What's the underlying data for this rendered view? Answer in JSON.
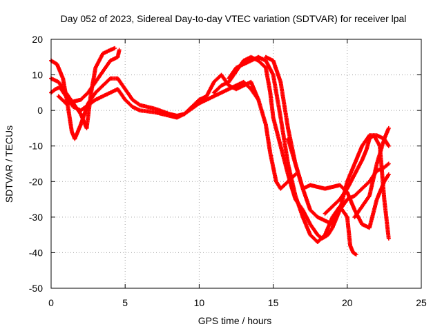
{
  "chart_data": {
    "type": "scatter",
    "title": "Day 052 of 2023, Sidereal Day-to-day VTEC variation (SDTVAR) for receiver lpal",
    "xlabel": "GPS time / hours",
    "ylabel": "SDTVAR / TECUs",
    "xlim": [
      0,
      25
    ],
    "ylim": [
      -50,
      20
    ],
    "xticks": [
      0,
      5,
      10,
      15,
      20,
      25
    ],
    "yticks": [
      -50,
      -40,
      -30,
      -20,
      -10,
      0,
      10,
      20
    ],
    "grid": true,
    "marker": "+",
    "color": "#ff0000",
    "series": [
      {
        "name": "trace-1",
        "points": [
          [
            0,
            14
          ],
          [
            0.4,
            13
          ],
          [
            0.8,
            9
          ],
          [
            1.1,
            2
          ],
          [
            1.4,
            -6
          ],
          [
            1.6,
            -8
          ],
          [
            2,
            -4
          ],
          [
            2.5,
            2
          ],
          [
            3,
            5
          ],
          [
            3.5,
            7
          ],
          [
            4,
            9
          ],
          [
            4.5,
            9
          ],
          [
            5,
            6
          ],
          [
            5.5,
            3
          ],
          [
            6,
            1.5
          ],
          [
            7,
            0.5
          ],
          [
            8,
            -1
          ],
          [
            8.5,
            -1.5
          ],
          [
            9,
            -1
          ],
          [
            9.5,
            0.5
          ],
          [
            10,
            2
          ],
          [
            11,
            4
          ],
          [
            12,
            6
          ],
          [
            13,
            8
          ],
          [
            13.5,
            6
          ],
          [
            14,
            3
          ],
          [
            14.5,
            -4
          ],
          [
            14.8,
            -12
          ],
          [
            15.2,
            -20
          ],
          [
            15.5,
            -22
          ],
          [
            16,
            -20
          ],
          [
            16.5,
            -18
          ]
        ]
      },
      {
        "name": "trace-2",
        "points": [
          [
            0,
            9
          ],
          [
            0.5,
            8
          ],
          [
            1,
            5
          ],
          [
            1.5,
            2
          ],
          [
            2,
            -1
          ],
          [
            2.4,
            -5
          ],
          [
            2.7,
            5
          ],
          [
            3,
            12
          ],
          [
            3.5,
            16
          ],
          [
            4,
            17
          ],
          [
            4.3,
            17.5
          ]
        ]
      },
      {
        "name": "trace-3",
        "points": [
          [
            0.5,
            4
          ],
          [
            1,
            2
          ],
          [
            1.5,
            2.5
          ],
          [
            2,
            3
          ],
          [
            2.5,
            5
          ],
          [
            3,
            8
          ],
          [
            3.5,
            11
          ],
          [
            4,
            14
          ],
          [
            4.5,
            15
          ],
          [
            4.6,
            17
          ]
        ]
      },
      {
        "name": "trace-4",
        "points": [
          [
            0,
            5
          ],
          [
            0.3,
            6
          ],
          [
            0.6,
            6.5
          ],
          [
            1,
            4
          ],
          [
            1.5,
            1
          ],
          [
            2,
            0
          ],
          [
            2.5,
            1.5
          ],
          [
            3,
            3
          ],
          [
            3.5,
            4
          ],
          [
            4,
            5
          ],
          [
            4.5,
            6
          ],
          [
            5,
            3
          ],
          [
            5.5,
            1
          ],
          [
            6,
            0
          ],
          [
            7,
            -0.5
          ],
          [
            8,
            -1.5
          ],
          [
            8.5,
            -2
          ],
          [
            9,
            -1
          ],
          [
            9.5,
            1
          ],
          [
            10,
            3
          ],
          [
            10.5,
            4
          ],
          [
            11,
            8
          ],
          [
            11.5,
            10
          ],
          [
            12,
            7
          ],
          [
            12.5,
            6
          ],
          [
            13,
            7
          ],
          [
            13.5,
            8
          ],
          [
            14,
            3
          ]
        ]
      },
      {
        "name": "trace-5",
        "points": [
          [
            11,
            5
          ],
          [
            11.5,
            7
          ],
          [
            12,
            8
          ],
          [
            12.5,
            11
          ],
          [
            13,
            14
          ],
          [
            13.5,
            15
          ],
          [
            14,
            14
          ],
          [
            14.5,
            12
          ],
          [
            14.8,
            5
          ],
          [
            15,
            -2
          ],
          [
            15.5,
            -10
          ],
          [
            16,
            -18
          ],
          [
            16.2,
            -21
          ],
          [
            16.5,
            -25
          ],
          [
            17,
            -28
          ],
          [
            17.5,
            -32
          ],
          [
            18,
            -35
          ],
          [
            18.3,
            -36
          ],
          [
            18.7,
            -35
          ],
          [
            19,
            -33
          ],
          [
            19.5,
            -28
          ],
          [
            20,
            -25
          ],
          [
            20.5,
            -24
          ],
          [
            21,
            -22
          ],
          [
            21.5,
            -20
          ],
          [
            22,
            -17
          ],
          [
            22.5,
            -16
          ],
          [
            22.8,
            -15
          ]
        ]
      },
      {
        "name": "trace-6",
        "points": [
          [
            12,
            9
          ],
          [
            12.5,
            12
          ],
          [
            13,
            13
          ],
          [
            13.5,
            14
          ],
          [
            14,
            15
          ],
          [
            14.5,
            14
          ],
          [
            15,
            10
          ],
          [
            15.5,
            -2
          ],
          [
            16,
            -15
          ],
          [
            16.5,
            -24
          ],
          [
            17,
            -30
          ],
          [
            17.5,
            -35
          ],
          [
            18,
            -37
          ],
          [
            18.5,
            -35
          ],
          [
            19,
            -30
          ],
          [
            19.5,
            -27
          ],
          [
            20,
            -30
          ],
          [
            20.2,
            -38
          ],
          [
            20.4,
            -40
          ],
          [
            20.6,
            -40.5
          ]
        ]
      },
      {
        "name": "trace-7",
        "points": [
          [
            14.5,
            15
          ],
          [
            15,
            14
          ],
          [
            15.5,
            8
          ],
          [
            16,
            -5
          ],
          [
            16.5,
            -15
          ],
          [
            17,
            -22
          ],
          [
            17.5,
            -21
          ],
          [
            18,
            -21.5
          ],
          [
            18.5,
            -22
          ],
          [
            19,
            -21.5
          ],
          [
            19.5,
            -21
          ],
          [
            20,
            -23
          ],
          [
            20.5,
            -28
          ],
          [
            21,
            -32
          ],
          [
            21.5,
            -33
          ],
          [
            22,
            -25
          ],
          [
            22.5,
            -20
          ],
          [
            22.8,
            -18
          ]
        ]
      },
      {
        "name": "trace-8",
        "points": [
          [
            16,
            -8
          ],
          [
            16.5,
            -15
          ],
          [
            17,
            -22
          ],
          [
            17.5,
            -28
          ],
          [
            18,
            -30
          ],
          [
            18.5,
            -31
          ],
          [
            19,
            -32
          ],
          [
            19.5,
            -28
          ],
          [
            20,
            -20
          ],
          [
            20.5,
            -15
          ],
          [
            21,
            -10
          ],
          [
            21.5,
            -7
          ],
          [
            22,
            -7
          ],
          [
            22.5,
            -8
          ],
          [
            22.8,
            -10
          ]
        ]
      },
      {
        "name": "trace-9",
        "points": [
          [
            18.5,
            -29
          ],
          [
            19,
            -27
          ],
          [
            19.5,
            -25
          ],
          [
            20,
            -22
          ],
          [
            20.5,
            -18
          ],
          [
            21,
            -14
          ],
          [
            21.3,
            -11
          ],
          [
            21.5,
            -8
          ],
          [
            21.8,
            -7
          ],
          [
            22.2,
            -10
          ],
          [
            22.5,
            -25
          ],
          [
            22.8,
            -36
          ]
        ]
      },
      {
        "name": "trace-10",
        "points": [
          [
            20.5,
            -30
          ],
          [
            21,
            -27
          ],
          [
            21.5,
            -24
          ],
          [
            22,
            -15
          ],
          [
            22.5,
            -8
          ],
          [
            22.8,
            -5
          ]
        ]
      }
    ]
  }
}
